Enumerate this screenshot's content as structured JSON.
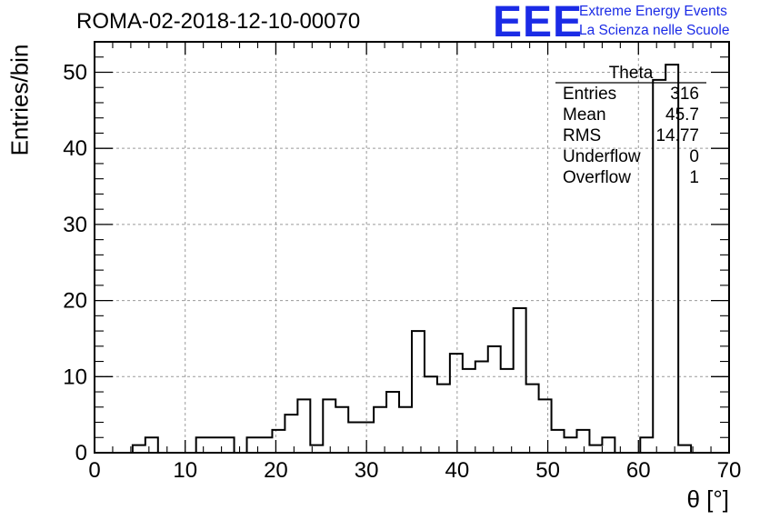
{
  "plot_title": "ROMA-02-2018-12-10-00070",
  "logo": {
    "mark": "EEE",
    "line1": "Extreme Energy Events",
    "line2": "La Scienza nelle Scuole",
    "color": "#1b2be6"
  },
  "stats_box": {
    "title": "Theta",
    "rows": [
      {
        "label": "Entries",
        "value": "316"
      },
      {
        "label": "Mean",
        "value": "45.7"
      },
      {
        "label": "RMS",
        "value": "14.77"
      },
      {
        "label": "Underflow",
        "value": "0"
      },
      {
        "label": "Overflow",
        "value": "1"
      }
    ]
  },
  "chart_data": {
    "type": "bar",
    "style": "step-histogram",
    "title": "ROMA-02-2018-12-10-00070",
    "xlabel": "θ [°]",
    "ylabel": "Entries/bin",
    "xlim": [
      0,
      70
    ],
    "ylim": [
      0,
      54
    ],
    "bin_width": 1.4,
    "x_ticks": [
      "0",
      "10",
      "20",
      "30",
      "40",
      "50",
      "60",
      "70"
    ],
    "y_ticks": [
      "0",
      "10",
      "20",
      "30",
      "40",
      "50"
    ],
    "grid": true,
    "line_color": "#000000",
    "bins": [
      {
        "x": 4.2,
        "y": 1
      },
      {
        "x": 5.6,
        "y": 2
      },
      {
        "x": 7.0,
        "y": 0
      },
      {
        "x": 11.2,
        "y": 2
      },
      {
        "x": 12.6,
        "y": 2
      },
      {
        "x": 14.0,
        "y": 2
      },
      {
        "x": 15.4,
        "y": 0
      },
      {
        "x": 16.8,
        "y": 2
      },
      {
        "x": 18.2,
        "y": 2
      },
      {
        "x": 19.6,
        "y": 3
      },
      {
        "x": 21.0,
        "y": 5
      },
      {
        "x": 22.4,
        "y": 7
      },
      {
        "x": 23.8,
        "y": 1
      },
      {
        "x": 25.2,
        "y": 7
      },
      {
        "x": 26.6,
        "y": 6
      },
      {
        "x": 28.0,
        "y": 4
      },
      {
        "x": 29.4,
        "y": 4
      },
      {
        "x": 30.8,
        "y": 6
      },
      {
        "x": 32.2,
        "y": 8
      },
      {
        "x": 33.6,
        "y": 6
      },
      {
        "x": 35.0,
        "y": 16
      },
      {
        "x": 36.4,
        "y": 10
      },
      {
        "x": 37.8,
        "y": 9
      },
      {
        "x": 39.2,
        "y": 13
      },
      {
        "x": 40.6,
        "y": 11
      },
      {
        "x": 42.0,
        "y": 12
      },
      {
        "x": 43.4,
        "y": 14
      },
      {
        "x": 44.8,
        "y": 11
      },
      {
        "x": 46.2,
        "y": 19
      },
      {
        "x": 47.6,
        "y": 9
      },
      {
        "x": 49.0,
        "y": 7
      },
      {
        "x": 50.4,
        "y": 3
      },
      {
        "x": 51.8,
        "y": 2
      },
      {
        "x": 53.2,
        "y": 3
      },
      {
        "x": 54.6,
        "y": 1
      },
      {
        "x": 56.0,
        "y": 2
      },
      {
        "x": 57.4,
        "y": 0
      },
      {
        "x": 60.2,
        "y": 2
      },
      {
        "x": 61.6,
        "y": 49
      },
      {
        "x": 63.0,
        "y": 51
      },
      {
        "x": 64.4,
        "y": 1
      },
      {
        "x": 65.8,
        "y": 0
      }
    ]
  }
}
